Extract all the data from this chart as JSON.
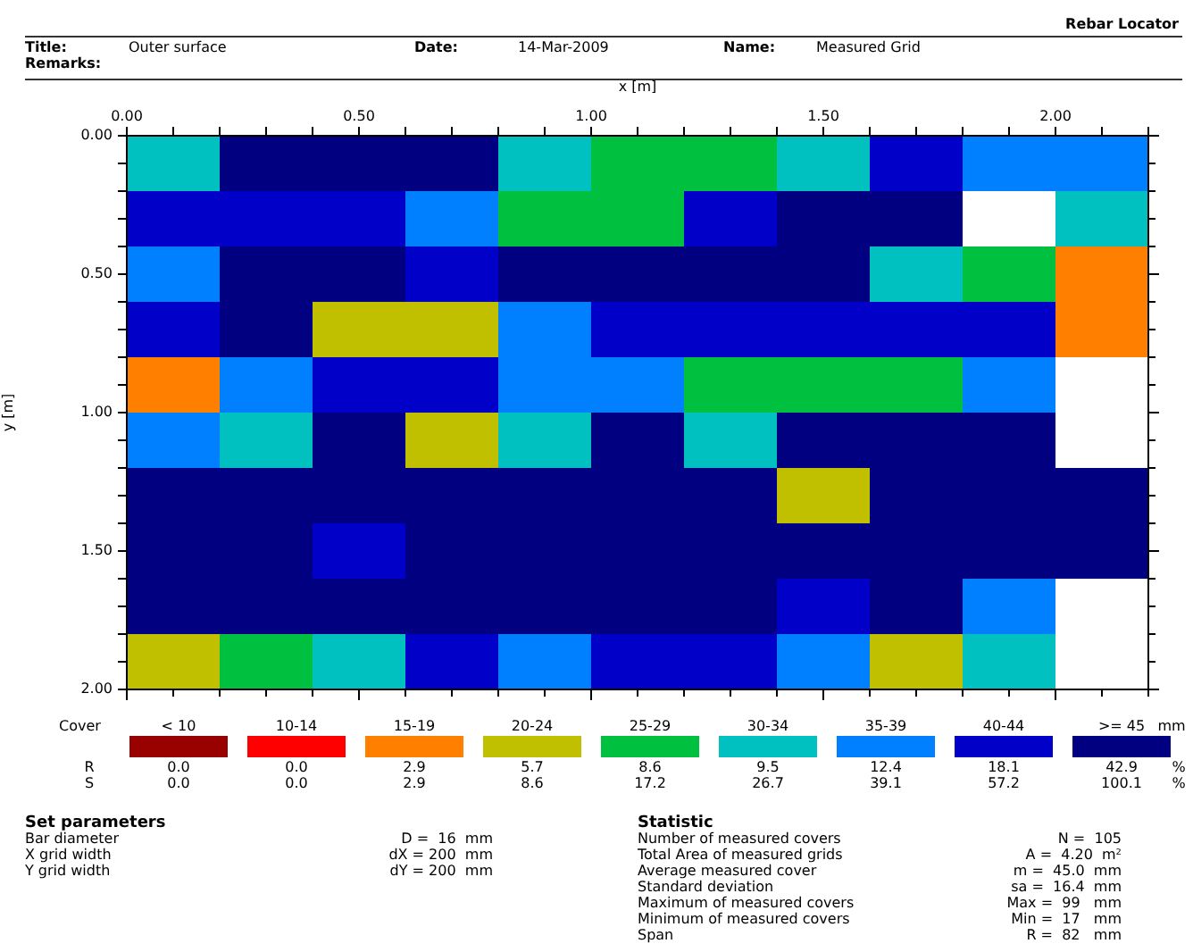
{
  "chart_data": [
    {
      "type": "heatmap",
      "xlabel": "x [m]",
      "ylabel": "y [m]",
      "clabel": "Cover",
      "xlim": [
        0,
        2.2
      ],
      "ylim": [
        2,
        0
      ],
      "xticks": [
        {
          "value": 0,
          "label": "0.00"
        },
        {
          "value": 0.1,
          "label": null
        },
        {
          "value": 0.2,
          "label": null
        },
        {
          "value": 0.3,
          "label": null
        },
        {
          "value": 0.4,
          "label": null
        },
        {
          "value": 0.5,
          "label": "0.50"
        },
        {
          "value": 0.6,
          "label": null
        },
        {
          "value": 0.7,
          "label": null
        },
        {
          "value": 0.8,
          "label": null
        },
        {
          "value": 0.9,
          "label": null
        },
        {
          "value": 1,
          "label": "1.00"
        },
        {
          "value": 1.1,
          "label": null
        },
        {
          "value": 1.2,
          "label": null
        },
        {
          "value": 1.3,
          "label": null
        },
        {
          "value": 1.4,
          "label": null
        },
        {
          "value": 1.5,
          "label": "1.50"
        },
        {
          "value": 1.6,
          "label": null
        },
        {
          "value": 1.7,
          "label": null
        },
        {
          "value": 1.8,
          "label": null
        },
        {
          "value": 1.9,
          "label": null
        },
        {
          "value": 2,
          "label": "2.00"
        },
        {
          "value": 2.1,
          "label": null
        },
        {
          "value": 2.2,
          "label": null
        }
      ],
      "yticks": [
        {
          "value": 0,
          "label": "0.00"
        },
        {
          "value": 0.1,
          "label": null
        },
        {
          "value": 0.2,
          "label": null
        },
        {
          "value": 0.3,
          "label": null
        },
        {
          "value": 0.4,
          "label": null
        },
        {
          "value": 0.5,
          "label": "0.50"
        },
        {
          "value": 0.6,
          "label": null
        },
        {
          "value": 0.7,
          "label": null
        },
        {
          "value": 0.8,
          "label": null
        },
        {
          "value": 0.9,
          "label": null
        },
        {
          "value": 1,
          "label": "1.00"
        },
        {
          "value": 1.1,
          "label": null
        },
        {
          "value": 1.2,
          "label": null
        },
        {
          "value": 1.3,
          "label": null
        },
        {
          "value": 1.4,
          "label": null
        },
        {
          "value": 1.5,
          "label": "1.50"
        },
        {
          "value": 1.6,
          "label": null
        },
        {
          "value": 1.7,
          "label": null
        },
        {
          "value": 1.8,
          "label": null
        },
        {
          "value": 1.9,
          "label": null
        },
        {
          "value": 2,
          "label": "2.00"
        }
      ],
      "clim": [
        -0.5,
        8.5
      ],
      "cticks": [
        {
          "value": 0,
          "label": "< 10"
        },
        {
          "value": 1,
          "label": "10-14"
        },
        {
          "value": 2,
          "label": "15-19"
        },
        {
          "value": 3,
          "label": "20-24"
        },
        {
          "value": 4,
          "label": "25-29"
        },
        {
          "value": 5,
          "label": "30-34"
        },
        {
          "value": 6,
          "label": "35-39"
        },
        {
          "value": 7,
          "label": "40-44"
        },
        {
          "value": 8,
          "label": ">= 45"
        }
      ],
      "colors": [
        "#990000",
        "#ff0000",
        "#ff8000",
        "#c0c000",
        "#00c040",
        "#00c0c0",
        "#0080ff",
        "#0000c8",
        "#000080"
      ],
      "cells": [
        [
          5,
          8,
          8,
          8,
          5,
          4,
          4,
          5,
          7,
          6,
          6
        ],
        [
          7,
          7,
          7,
          6,
          4,
          4,
          7,
          8,
          8,
          null,
          5
        ],
        [
          6,
          8,
          8,
          7,
          8,
          8,
          8,
          8,
          5,
          4,
          2
        ],
        [
          7,
          8,
          3,
          3,
          6,
          7,
          7,
          7,
          7,
          7,
          2
        ],
        [
          2,
          6,
          7,
          7,
          6,
          6,
          4,
          4,
          4,
          6,
          null
        ],
        [
          6,
          5,
          8,
          3,
          5,
          8,
          5,
          8,
          8,
          8,
          null
        ],
        [
          8,
          8,
          8,
          8,
          8,
          8,
          8,
          3,
          8,
          8,
          8
        ],
        [
          8,
          8,
          7,
          8,
          8,
          8,
          8,
          8,
          8,
          8,
          8
        ],
        [
          8,
          8,
          8,
          8,
          8,
          8,
          8,
          7,
          8,
          6,
          null
        ],
        [
          3,
          4,
          5,
          7,
          6,
          7,
          7,
          6,
          3,
          5,
          null
        ]
      ]
    },
    {
      "type": "other",
      "annotations": [
        "Rebar Locator",
        "Title:",
        "Outer surface",
        "Date:",
        "14-Mar-2009",
        "Name:",
        "Measured Grid",
        "Remarks:",
        "mm",
        "R",
        "0.0",
        "0.0",
        "2.9",
        "5.7",
        "8.6",
        "9.5",
        "12.4",
        "18.1",
        "42.9",
        "%",
        "S",
        "0.0",
        "0.0",
        "2.9",
        "8.6",
        "17.2",
        "26.7",
        "39.1",
        "57.2",
        "100.1",
        "%",
        "Set parameters",
        "Bar diameter",
        "D =  16  mm",
        "X grid width",
        "dX = 200  mm",
        "Y grid width",
        "dY = 200  mm",
        "Statistic",
        "Number of measured covers",
        "N =  105",
        "Total Area of measured grids",
        "A =  4.20  m²",
        "Average measured cover",
        "m =  45.0  mm",
        "Standard deviation",
        "sa =  16.4  mm",
        "Maximum of measured covers",
        "Max =  99   mm",
        "Minimum of measured covers",
        "Min =  17   mm",
        "Span",
        "R =  82   mm"
      ]
    }
  ]
}
